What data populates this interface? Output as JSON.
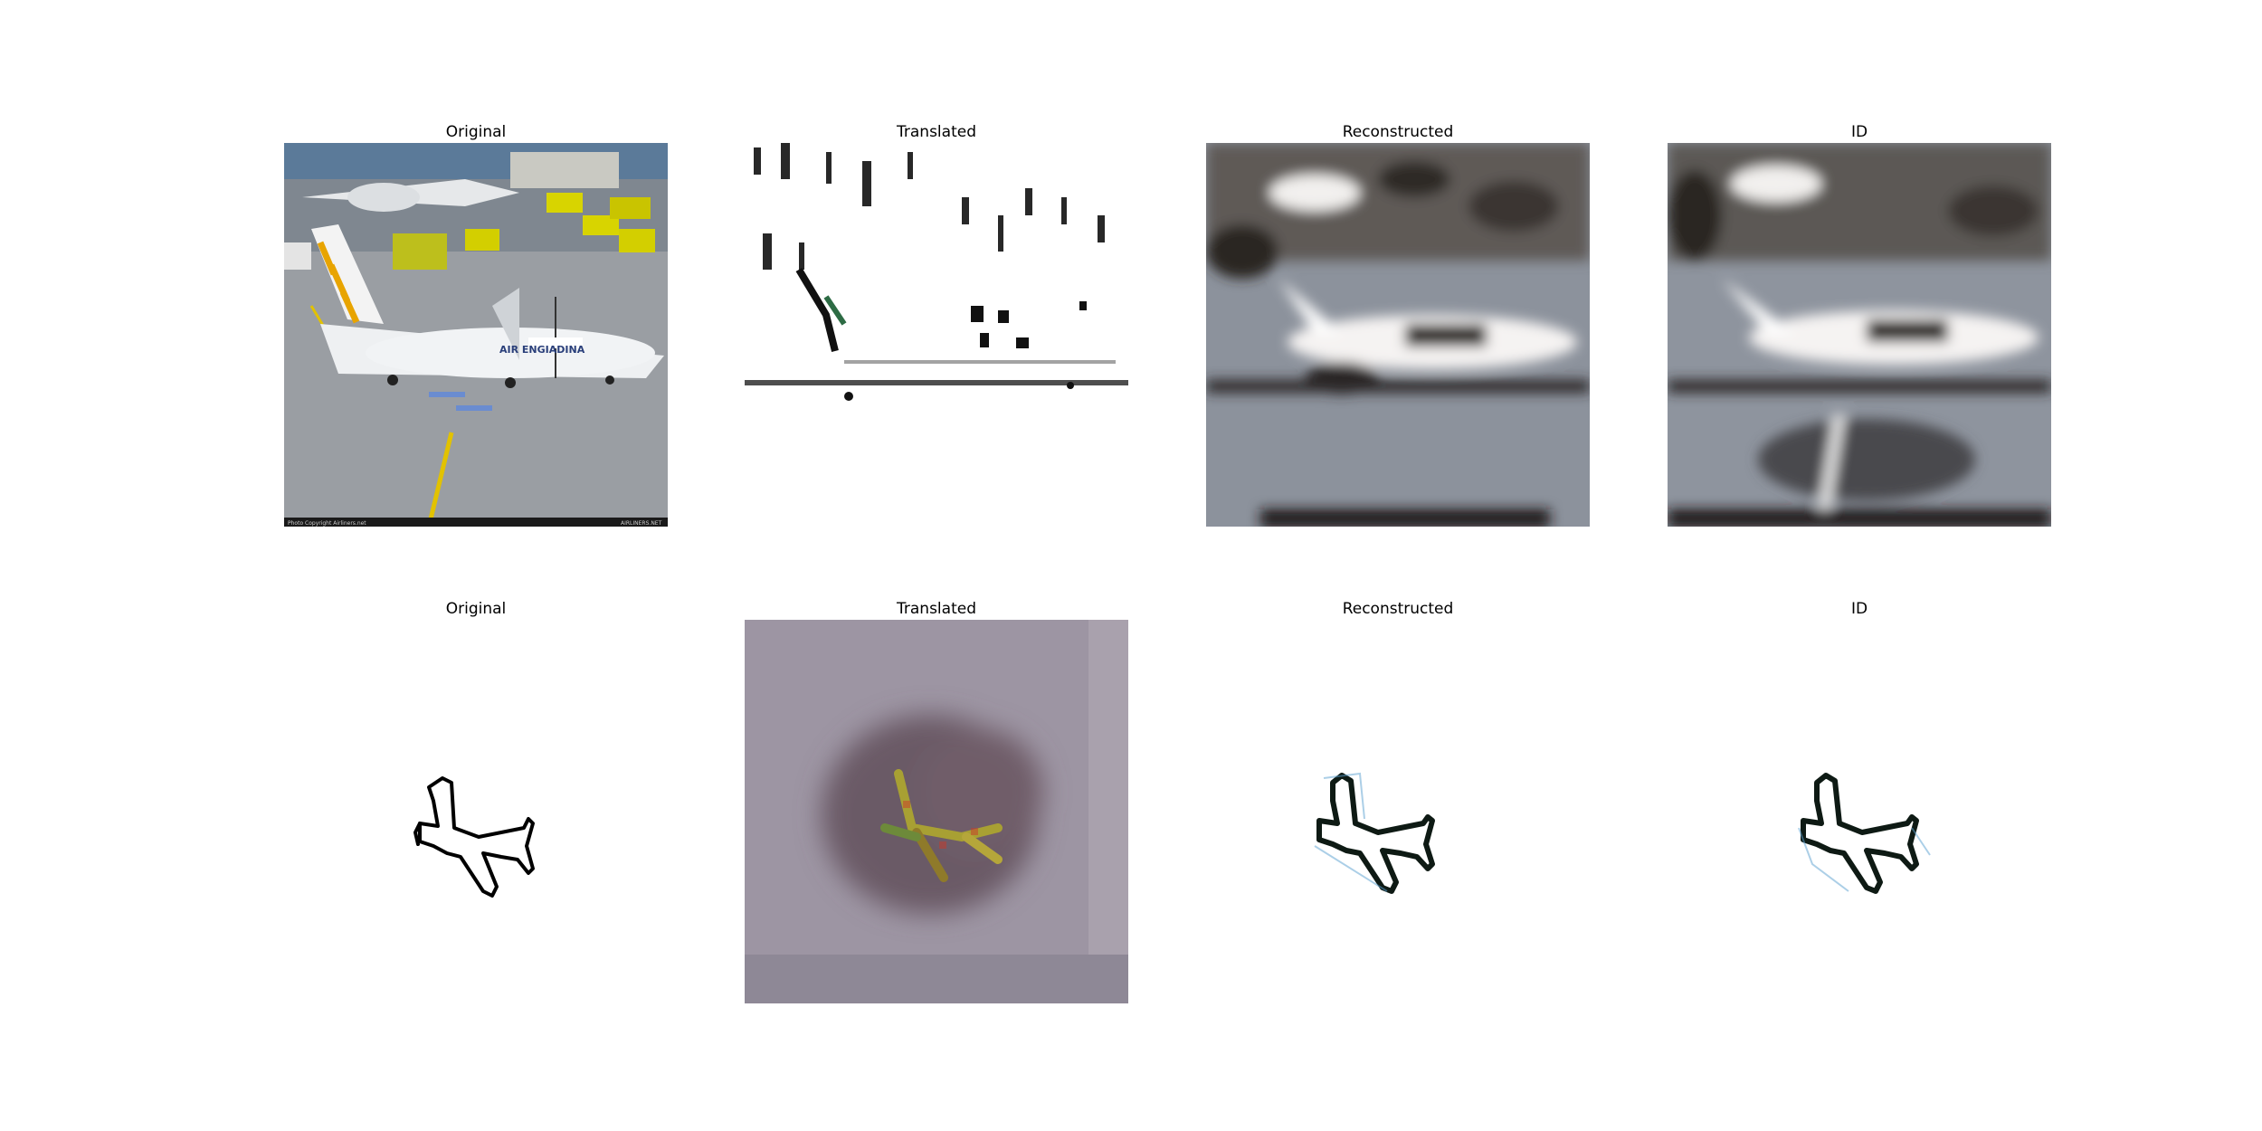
{
  "figure": {
    "rows": [
      {
        "panels": [
          {
            "title": "Original",
            "content": "photo-airport-plane",
            "watermark_left": "Photo Copyright Airliners.net",
            "watermark_right": "AIRLINERS.NET",
            "livery_text": "AIR ENGIADINA"
          },
          {
            "title": "Translated",
            "content": "sketch-style-translation"
          },
          {
            "title": "Reconstructed",
            "content": "blurred-photo-reconstruction"
          },
          {
            "title": "ID",
            "content": "blurred-photo-identity"
          }
        ]
      },
      {
        "panels": [
          {
            "title": "Original",
            "content": "plane-sketch"
          },
          {
            "title": "Translated",
            "content": "noisy-photo-translation"
          },
          {
            "title": "Reconstructed",
            "content": "sketch-reconstruction"
          },
          {
            "title": "ID",
            "content": "sketch-identity"
          }
        ]
      }
    ]
  }
}
